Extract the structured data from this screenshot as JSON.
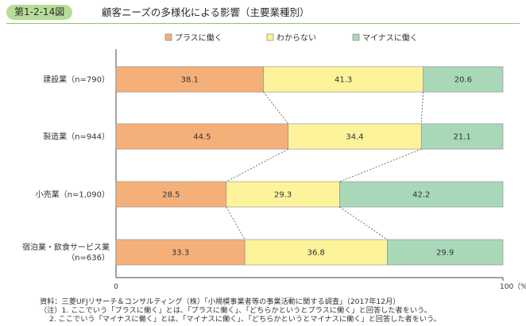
{
  "header": {
    "figure_label": "第1-2-14図",
    "title": "顧客ニーズの多様化による影響（主要業種別）"
  },
  "chart_data": {
    "type": "bar",
    "orientation": "horizontal",
    "stacked": true,
    "categories": [
      "建設業（n=790）",
      "製造業（n=944）",
      "小売業（n=1,090）",
      "宿泊業・飲食サービス業（n=636）"
    ],
    "category_lines": [
      [
        "建設業（n=790）"
      ],
      [
        "製造業（n=944）"
      ],
      [
        "小売業（n=1,090）"
      ],
      [
        "宿泊業・飲食サービス業",
        "（n=636）"
      ]
    ],
    "series": [
      {
        "name": "プラスに働く",
        "values": [
          38.1,
          44.5,
          28.5,
          33.3
        ],
        "color": "#f5b07a"
      },
      {
        "name": "わからない",
        "values": [
          41.3,
          34.4,
          29.3,
          36.8
        ],
        "color": "#fdf39b"
      },
      {
        "name": "マイナスに働く",
        "values": [
          20.6,
          21.1,
          42.2,
          29.9
        ],
        "color": "#a8d8b8"
      }
    ],
    "xlim": [
      0,
      100
    ],
    "x_tick_labels": {
      "min": "0",
      "max": "100（%）"
    },
    "legend_position": "top",
    "grid": false,
    "connector_lines": true
  },
  "notes": {
    "source": "資料：三菱UFJリサーチ＆コンサルティング（株）「小規模事業者等の事業活動に関する調査」（2017年12月）",
    "note1": "（注）1. ここでいう「プラスに働く」とは、「プラスに働く」、「どちらかというとプラスに働く」と回答した者をいう。",
    "note2": "2. ここでいう「マイナスに働く」とは、「マイナスに働く」、「どちらかというとマイナスに働く」と回答した者をいう。"
  }
}
